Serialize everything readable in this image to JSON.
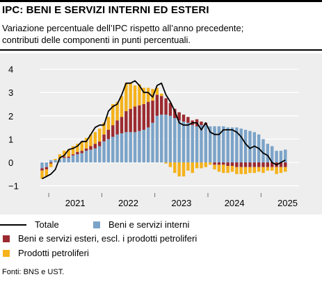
{
  "header": {
    "title": "IPC: BENI E SERVIZI INTERNI ED ESTERI",
    "subtitle_line1": "Variazione percentuale dell’IPC rispetto all’anno precedente;",
    "subtitle_line2": "contributi delle componenti in punti percentuali."
  },
  "legend": {
    "total": "Totale",
    "domestic": "Beni e servizi interni",
    "foreign": "Beni e servizi esteri, escl. i prodotti petroliferi",
    "oil": "Prodotti petroliferi"
  },
  "source": "Fonti: BNS e UST.",
  "colors": {
    "domestic": "#7ba3c8",
    "foreign": "#9b2a30",
    "oil": "#f5b21b",
    "total": "#000000",
    "panel": "#eeeeee"
  },
  "chart_data": {
    "type": "bar",
    "stacked": true,
    "ylim": [
      -1.2,
      4.3
    ],
    "yticks": [
      -1,
      0,
      1,
      2,
      3,
      4
    ],
    "xticks": [
      "2021",
      "2022",
      "2023",
      "2024",
      "2025"
    ],
    "start_month": "2020-11",
    "months": [
      "2020-11",
      "2020-12",
      "2021-01",
      "2021-02",
      "2021-03",
      "2021-04",
      "2021-05",
      "2021-06",
      "2021-07",
      "2021-08",
      "2021-09",
      "2021-10",
      "2021-11",
      "2021-12",
      "2022-01",
      "2022-02",
      "2022-03",
      "2022-04",
      "2022-05",
      "2022-06",
      "2022-07",
      "2022-08",
      "2022-09",
      "2022-10",
      "2022-11",
      "2022-12",
      "2023-01",
      "2023-02",
      "2023-03",
      "2023-04",
      "2023-05",
      "2023-06",
      "2023-07",
      "2023-08",
      "2023-09",
      "2023-10",
      "2023-11",
      "2023-12",
      "2024-01",
      "2024-02",
      "2024-03",
      "2024-04",
      "2024-05",
      "2024-06",
      "2024-07",
      "2024-08",
      "2024-09",
      "2024-10",
      "2024-11",
      "2024-12",
      "2025-01",
      "2025-02",
      "2025-03",
      "2025-04",
      "2025-05",
      "2025-06"
    ],
    "grid": true,
    "series": [
      {
        "name": "Beni e servizi interni",
        "values": [
          -0.25,
          -0.2,
          0.1,
          0.1,
          0.15,
          0.2,
          0.2,
          0.3,
          0.35,
          0.4,
          0.5,
          0.55,
          0.6,
          0.7,
          0.9,
          1.0,
          1.1,
          1.2,
          1.25,
          1.3,
          1.3,
          1.3,
          1.35,
          1.4,
          1.5,
          1.7,
          2.0,
          2.05,
          2.05,
          2.0,
          1.9,
          1.8,
          1.75,
          1.7,
          1.6,
          1.55,
          1.6,
          1.6,
          1.55,
          1.55,
          1.55,
          1.55,
          1.5,
          1.5,
          1.5,
          1.45,
          1.4,
          1.35,
          1.3,
          1.2,
          1.0,
          0.8,
          0.7,
          0.5,
          0.5,
          0.55
        ]
      },
      {
        "name": "Beni e servizi esteri, escl. i prodotti petroliferi",
        "values": [
          -0.1,
          -0.1,
          -0.05,
          0.0,
          0.0,
          0.05,
          0.05,
          0.05,
          0.1,
          0.1,
          0.1,
          0.15,
          0.2,
          0.2,
          0.3,
          0.4,
          0.5,
          0.6,
          0.7,
          0.9,
          1.0,
          1.1,
          1.1,
          1.1,
          1.1,
          0.95,
          0.9,
          0.8,
          0.7,
          0.55,
          0.4,
          0.35,
          0.3,
          0.25,
          0.2,
          0.3,
          0.15,
          0.1,
          0.0,
          -0.1,
          -0.1,
          -0.1,
          -0.15,
          -0.15,
          -0.2,
          -0.2,
          -0.2,
          -0.2,
          -0.2,
          -0.2,
          -0.2,
          -0.2,
          -0.2,
          -0.2,
          -0.2,
          -0.2
        ]
      },
      {
        "name": "Prodotti petroliferi",
        "values": [
          -0.35,
          -0.3,
          -0.15,
          0.05,
          0.2,
          0.25,
          0.3,
          0.35,
          0.35,
          0.4,
          0.45,
          0.5,
          0.5,
          0.55,
          0.5,
          0.55,
          0.9,
          0.8,
          0.9,
          1.2,
          1.1,
          0.9,
          0.9,
          0.7,
          0.6,
          0.5,
          0.3,
          0.1,
          -0.05,
          -0.2,
          -0.45,
          -0.6,
          -0.6,
          -0.35,
          -0.45,
          -0.25,
          -0.25,
          -0.2,
          -0.1,
          -0.2,
          -0.3,
          -0.35,
          -0.3,
          -0.25,
          -0.3,
          -0.3,
          -0.3,
          -0.25,
          -0.25,
          -0.2,
          -0.25,
          -0.15,
          -0.15,
          -0.3,
          -0.25,
          -0.2
        ]
      },
      {
        "name": "Totale",
        "type": "line",
        "values": [
          -0.7,
          -0.6,
          -0.5,
          -0.3,
          0.2,
          0.3,
          0.55,
          0.6,
          0.7,
          0.9,
          0.9,
          1.2,
          1.5,
          1.6,
          1.6,
          2.2,
          2.4,
          2.5,
          2.9,
          3.4,
          3.4,
          3.5,
          3.3,
          3.0,
          3.0,
          2.8,
          3.3,
          3.4,
          2.9,
          2.6,
          2.2,
          1.7,
          1.6,
          1.6,
          1.7,
          1.7,
          1.4,
          1.7,
          1.3,
          1.2,
          1.2,
          1.4,
          1.4,
          1.4,
          1.3,
          1.1,
          0.8,
          0.6,
          0.7,
          0.6,
          0.4,
          0.3,
          0.0,
          -0.1,
          0.0,
          0.1
        ]
      }
    ]
  }
}
